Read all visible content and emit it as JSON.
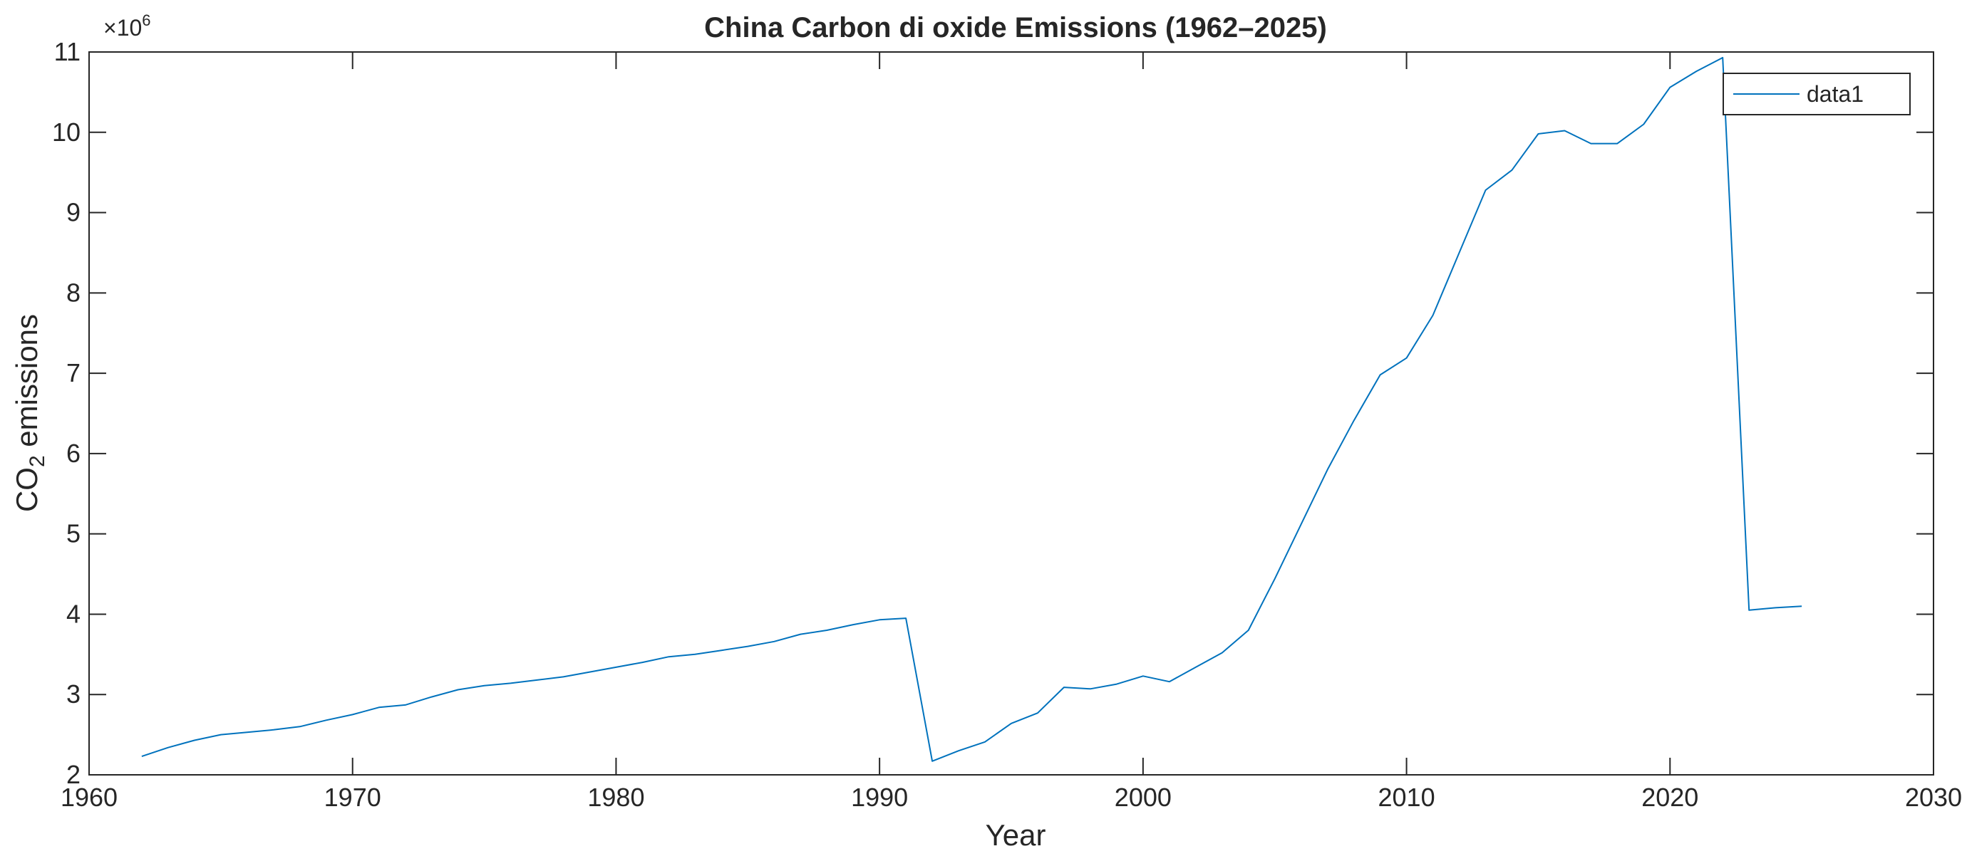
{
  "chart_data": {
    "type": "line",
    "title": "China Carbon di oxide Emissions (1962–2025)",
    "xlabel": "Year",
    "ylabel_main": "CO",
    "ylabel_sub": "2",
    "ylabel_rest": " emissions",
    "y_exponent_prefix": "×10",
    "y_exponent_power": "6",
    "xlim": [
      1960,
      2030
    ],
    "ylim": [
      2,
      11
    ],
    "x_ticks": [
      1960,
      1970,
      1980,
      1990,
      2000,
      2010,
      2020,
      2030
    ],
    "y_ticks": [
      2,
      3,
      4,
      5,
      6,
      7,
      8,
      9,
      10,
      11
    ],
    "grid": false,
    "legend_position": "top-right",
    "line_color": "#0072BD",
    "series": [
      {
        "name": "data1",
        "x": [
          1962,
          1963,
          1964,
          1965,
          1966,
          1967,
          1968,
          1969,
          1970,
          1971,
          1972,
          1973,
          1974,
          1975,
          1976,
          1977,
          1978,
          1979,
          1980,
          1981,
          1982,
          1983,
          1984,
          1985,
          1986,
          1987,
          1988,
          1989,
          1990,
          1991,
          1992,
          1993,
          1994,
          1995,
          1996,
          1997,
          1998,
          1999,
          2000,
          2001,
          2002,
          2003,
          2004,
          2005,
          2006,
          2007,
          2008,
          2009,
          2010,
          2011,
          2012,
          2013,
          2014,
          2015,
          2016,
          2017,
          2018,
          2019,
          2020,
          2021,
          2022,
          2023,
          2024,
          2025
        ],
        "y": [
          2.23,
          2.34,
          2.43,
          2.5,
          2.53,
          2.56,
          2.6,
          2.68,
          2.75,
          2.84,
          2.87,
          2.97,
          3.06,
          3.11,
          3.14,
          3.18,
          3.22,
          3.28,
          3.34,
          3.4,
          3.47,
          3.5,
          3.55,
          3.6,
          3.66,
          3.75,
          3.8,
          3.87,
          3.93,
          3.95,
          2.17,
          2.3,
          2.41,
          2.64,
          2.77,
          3.09,
          3.07,
          3.13,
          3.23,
          3.16,
          3.34,
          3.52,
          3.8,
          4.44,
          5.12,
          5.8,
          6.41,
          6.98,
          7.19,
          7.72,
          8.5,
          9.28,
          9.53,
          9.98,
          10.02,
          9.86,
          9.86,
          10.1,
          10.56,
          10.76,
          10.93,
          4.05,
          4.08,
          4.1
        ]
      }
    ]
  }
}
